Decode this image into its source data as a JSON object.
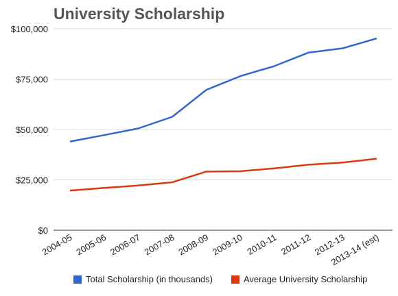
{
  "chart_data": {
    "type": "line",
    "title": "University Scholarship",
    "xlabel": "",
    "ylabel": "",
    "categories": [
      "2004-05",
      "2005-06",
      "2006-07",
      "2007-08",
      "2008-09",
      "2009-10",
      "2010-11",
      "2011-12",
      "2012-13",
      "2013-14 (est)"
    ],
    "y_ticks": [
      "$0",
      "$25,000",
      "$50,000",
      "$75,000",
      "$100,000"
    ],
    "ylim": [
      0,
      100000
    ],
    "grid": true,
    "legend_position": "bottom",
    "series": [
      {
        "name": "Total Scholarship (in thousands)",
        "color": "#3366cc",
        "values": [
          44000,
          47200,
          50500,
          56300,
          69700,
          76500,
          81500,
          88200,
          90300,
          95200
        ]
      },
      {
        "name": "Average University Scholarship",
        "color": "#dc3912",
        "values": [
          19700,
          21000,
          22200,
          23800,
          29100,
          29300,
          30700,
          32500,
          33600,
          35500
        ]
      }
    ]
  }
}
